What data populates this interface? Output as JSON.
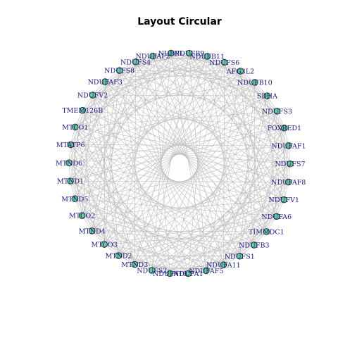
{
  "title": "Layout Circular",
  "colors": {
    "node_fill": "#66cc99",
    "node_stroke": "#222222",
    "edge": "#bdbdbd",
    "label": "#1a1a80"
  },
  "nodes": [
    "NDUFB9",
    "NDUFB11",
    "NDUFS6",
    "AFG3L2",
    "NDUFB10",
    "SDHA",
    "NDUFS3",
    "FOXRED1",
    "NDUFAF1",
    "NDUFS7",
    "NDUFAF8",
    "NDUFV1",
    "NDUFA6",
    "TIMMDC1",
    "NDUFB3",
    "NDUFS1",
    "NDUFA11",
    "NDUFAF5",
    "NDUFA1",
    "NDUFA10",
    "NDUFS2",
    "MTND3",
    "MTND2",
    "MTCO3",
    "MTND4",
    "MTCO2",
    "MTND5",
    "MTND1",
    "MTND6",
    "MTATP6",
    "MTCO1",
    "TMEM126B",
    "NDUFV2",
    "NDUFAF3",
    "NDUFS8",
    "NDUFS4",
    "NDUFAF2",
    "NUBPL"
  ]
}
